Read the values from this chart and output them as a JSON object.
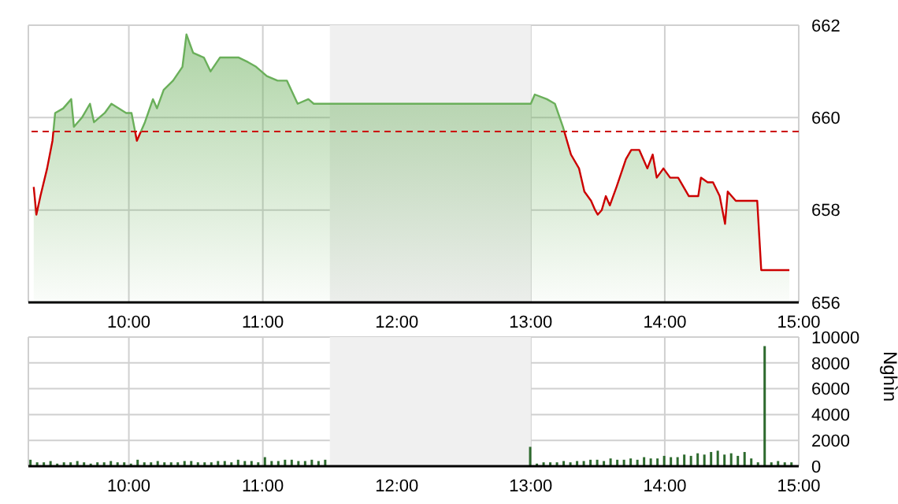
{
  "chart_data": [
    {
      "type": "area",
      "x": [
        9.29,
        9.31,
        9.34,
        9.39,
        9.43,
        9.45,
        9.51,
        9.57,
        9.59,
        9.65,
        9.71,
        9.74,
        9.82,
        9.87,
        9.98,
        10.02,
        10.06,
        10.12,
        10.18,
        10.21,
        10.26,
        10.33,
        10.4,
        10.43,
        10.48,
        10.56,
        10.61,
        10.68,
        10.82,
        10.89,
        10.95,
        11.03,
        11.11,
        11.18,
        11.26,
        11.34,
        11.38,
        11.41,
        11.48,
        13.0,
        13.03,
        13.12,
        13.18,
        13.24,
        13.3,
        13.36,
        13.4,
        13.45,
        13.48,
        13.5,
        13.53,
        13.56,
        13.59,
        13.64,
        13.71,
        13.75,
        13.81,
        13.87,
        13.91,
        13.94,
        13.99,
        14.04,
        14.1,
        14.18,
        14.25,
        14.27,
        14.32,
        14.36,
        14.41,
        14.45,
        14.47,
        14.53,
        14.69,
        14.72,
        14.93
      ],
      "series": [
        {
          "color": "#6aaf5a",
          "values": [
            658.5,
            657.9,
            658.3,
            658.9,
            659.5,
            660.1,
            660.2,
            660.4,
            659.8,
            660.0,
            660.3,
            659.9,
            660.1,
            660.3,
            660.1,
            660.1,
            659.5,
            659.9,
            660.4,
            660.2,
            660.6,
            660.8,
            661.1,
            661.8,
            661.4,
            661.3,
            661.0,
            661.3,
            661.3,
            661.2,
            661.1,
            660.9,
            660.8,
            660.8,
            660.3,
            660.4,
            660.3,
            660.3,
            660.3,
            660.3,
            660.5,
            660.4,
            660.3,
            659.8,
            659.2,
            658.9,
            658.4,
            658.2,
            658.0,
            657.9,
            658.0,
            658.3,
            658.1,
            658.5,
            659.1,
            659.3,
            659.3,
            658.9,
            659.2,
            658.7,
            658.9,
            658.7,
            658.7,
            658.3,
            658.3,
            658.7,
            658.6,
            658.6,
            658.3,
            657.7,
            658.4,
            658.2,
            658.2,
            656.7,
            656.7
          ]
        }
      ],
      "xlim": [
        9.25,
        15
      ],
      "xticks": [
        {
          "value": 10,
          "label": "10:00"
        },
        {
          "value": 11,
          "label": "11:00"
        },
        {
          "value": 12,
          "label": "12:00"
        },
        {
          "value": 13,
          "label": "13:00"
        },
        {
          "value": 14,
          "label": "14:00"
        },
        {
          "value": 15,
          "label": "15:00"
        }
      ],
      "ylim": [
        656,
        662
      ],
      "yticks": [
        656,
        658,
        660,
        662
      ],
      "grid": true,
      "ref_lines": [
        {
          "axis": "y",
          "value": 659.7,
          "color": "#cc0000",
          "line_style": "dashed"
        }
      ],
      "bands": [
        {
          "axis": "x",
          "from": 11.5,
          "to": 13,
          "color": "#f0f0f0"
        }
      ]
    },
    {
      "type": "bar",
      "x": [
        9.27,
        9.32,
        9.37,
        9.42,
        9.47,
        9.52,
        9.57,
        9.62,
        9.67,
        9.72,
        9.77,
        9.82,
        9.87,
        9.92,
        9.97,
        10.02,
        10.07,
        10.12,
        10.17,
        10.22,
        10.27,
        10.32,
        10.37,
        10.42,
        10.47,
        10.52,
        10.57,
        10.62,
        10.67,
        10.72,
        10.77,
        10.82,
        10.87,
        10.92,
        10.97,
        11.02,
        11.07,
        11.12,
        11.17,
        11.22,
        11.27,
        11.32,
        11.37,
        11.42,
        11.47,
        13.0,
        13.05,
        13.1,
        13.15,
        13.2,
        13.25,
        13.3,
        13.35,
        13.4,
        13.45,
        13.5,
        13.55,
        13.6,
        13.65,
        13.7,
        13.75,
        13.8,
        13.85,
        13.9,
        13.95,
        14.0,
        14.05,
        14.1,
        14.15,
        14.2,
        14.25,
        14.3,
        14.35,
        14.4,
        14.45,
        14.5,
        14.55,
        14.6,
        14.65,
        14.7,
        14.75,
        14.8,
        14.85,
        14.9,
        14.95
      ],
      "values": [
        500,
        300,
        300,
        400,
        200,
        300,
        300,
        400,
        300,
        200,
        300,
        300,
        400,
        300,
        300,
        200,
        500,
        300,
        300,
        400,
        300,
        300,
        300,
        400,
        400,
        300,
        300,
        300,
        400,
        400,
        300,
        500,
        400,
        400,
        300,
        700,
        400,
        400,
        500,
        500,
        400,
        400,
        500,
        400,
        500,
        1500,
        200,
        300,
        300,
        300,
        400,
        300,
        400,
        400,
        500,
        500,
        400,
        600,
        500,
        500,
        600,
        500,
        700,
        600,
        600,
        800,
        700,
        700,
        900,
        800,
        1000,
        900,
        1100,
        1200,
        900,
        1000,
        800,
        1100,
        600,
        300,
        9300,
        300,
        400,
        300,
        300
      ],
      "color": "#2d6a2d",
      "ylabel": "Nghìn",
      "xlim": [
        9.25,
        15
      ],
      "xticks": [
        {
          "value": 10,
          "label": "10:00"
        },
        {
          "value": 11,
          "label": "11:00"
        },
        {
          "value": 12,
          "label": "12:00"
        },
        {
          "value": 13,
          "label": "13:00"
        },
        {
          "value": 14,
          "label": "14:00"
        },
        {
          "value": 15,
          "label": "15:00"
        }
      ],
      "ylim": [
        0,
        10000
      ],
      "yticks": [
        0,
        2000,
        4000,
        6000,
        8000,
        10000
      ],
      "grid": true,
      "bands": [
        {
          "axis": "x",
          "from": 11.5,
          "to": 13,
          "color": "#f0f0f0"
        }
      ]
    }
  ]
}
